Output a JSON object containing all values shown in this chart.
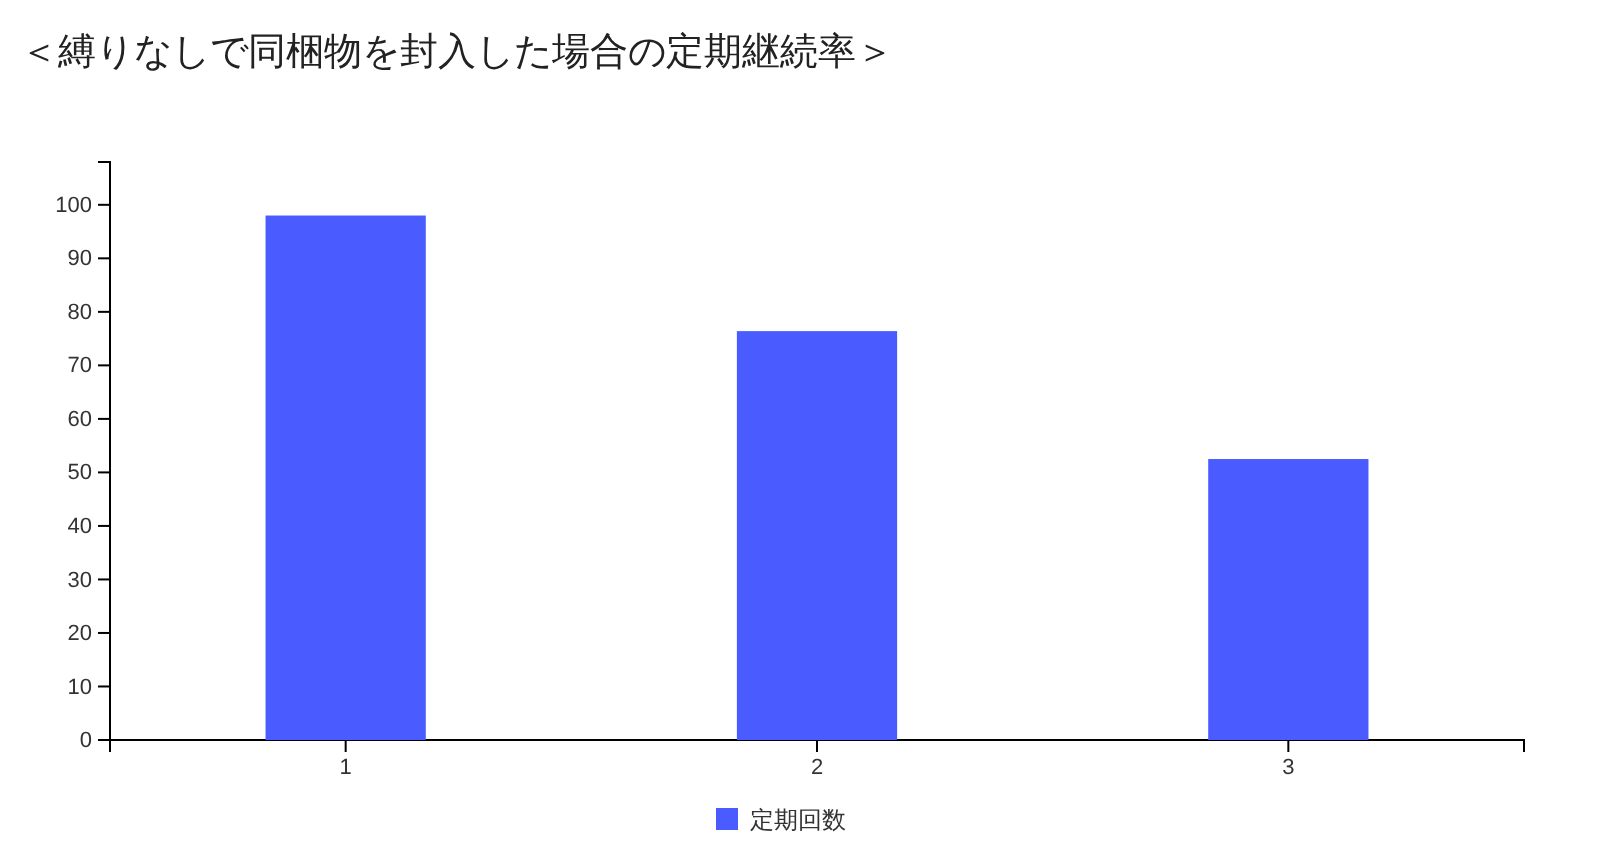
{
  "chart_data": {
    "type": "bar",
    "title": "＜縛りなしで同梱物を封入した場合の定期継続率＞",
    "categories": [
      "1",
      "2",
      "3"
    ],
    "series": [
      {
        "name": "定期回数",
        "color": "#4a5cff",
        "values": [
          98,
          76.4,
          52.5
        ]
      }
    ],
    "ylim": [
      0,
      108
    ],
    "yticks": [
      0,
      10,
      20,
      30,
      40,
      50,
      60,
      70,
      80,
      90,
      100
    ],
    "grid": false,
    "legend": "bottom"
  }
}
